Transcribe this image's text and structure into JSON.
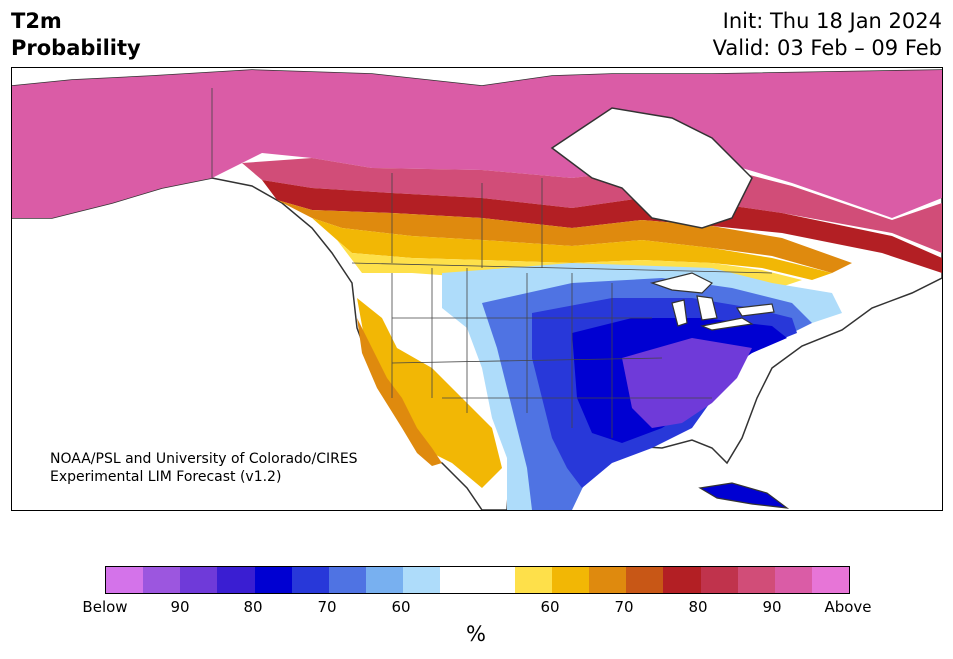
{
  "header": {
    "variable": "T2m",
    "product": "Probability",
    "init": "Init: Thu 18 Jan 2024",
    "valid": "Valid: 03 Feb – 09 Feb"
  },
  "map": {
    "credit_line1": "NOAA/PSL and University of Colorado/CIRES",
    "credit_line2": "Experimental LIM Forecast (v1.2)"
  },
  "colorbar": {
    "colors": [
      "#d473ea",
      "#9c56df",
      "#6f3ad9",
      "#3a1ed2",
      "#0000d2",
      "#2838d9",
      "#4f73e3",
      "#78b0f0",
      "#aedcfa",
      "#ffffff",
      "#ffffff",
      "#fee04a",
      "#f2b705",
      "#df8a0e",
      "#c85716",
      "#b31f24",
      "#c0334c",
      "#d14d78",
      "#da5ca6",
      "#e775d7"
    ],
    "tick_labels": [
      "Below",
      "90",
      "80",
      "70",
      "60",
      "60",
      "70",
      "80",
      "90",
      "Above"
    ],
    "unit": "%"
  }
}
